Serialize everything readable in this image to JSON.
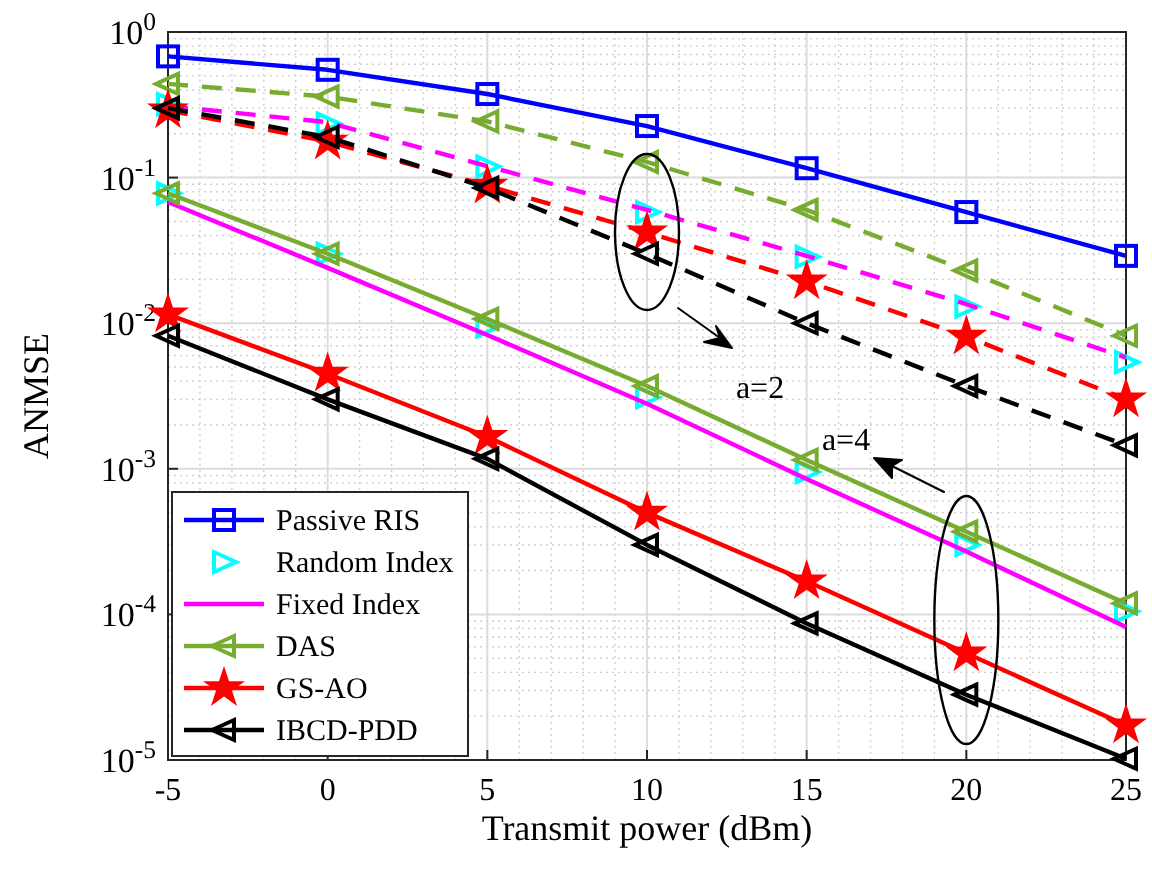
{
  "chart_data": {
    "type": "line",
    "xlabel": "Transmit power (dBm)",
    "ylabel": "ANMSE",
    "log": "y",
    "grid": true,
    "legend": "bottom left",
    "x": [
      -5,
      0,
      5,
      10,
      15,
      20,
      25
    ],
    "xlim": [
      -5,
      25
    ],
    "xticks": [
      -5,
      0,
      5,
      10,
      15,
      20,
      25
    ],
    "ylim": [
      1e-05,
      1
    ],
    "yticks": [
      {
        "value": 1e-05,
        "label": "10$^{-5}$"
      },
      {
        "value": 0.0001,
        "label": "10$^{-4}$"
      },
      {
        "value": 0.001,
        "label": "10$^{-3}$"
      },
      {
        "value": 0.01,
        "label": "10$^{-2}$"
      },
      {
        "value": 0.1,
        "label": "10$^{-1}$"
      },
      {
        "value": 1,
        "label": "10$^{0}$"
      }
    ],
    "series": [
      {
        "name": "Passive RIS",
        "color": "#0000ff",
        "marker": "square",
        "line_style": "solid",
        "values": [
          0.68,
          0.55,
          0.375,
          0.226,
          0.116,
          0.058,
          0.029
        ]
      },
      {
        "name": "Random Index",
        "type": "scatter",
        "color": "#00ffff",
        "marker": "triangle-right",
        "values": [
          0.078,
          0.03,
          0.0095,
          0.0031,
          0.00095,
          0.0003,
          0.000105
        ]
      },
      {
        "name": "Fixed Index",
        "color": "#ff00ff",
        "marker": "none",
        "line_style": "solid",
        "values": [
          0.068,
          0.024,
          0.0083,
          0.0028,
          0.00085,
          0.00027,
          8.2e-05
        ]
      },
      {
        "name": "DAS",
        "color": "#77ac30",
        "marker": "triangle-left",
        "line_style": "solid",
        "values": [
          0.078,
          0.03,
          0.0107,
          0.0037,
          0.00115,
          0.00037,
          0.000119
        ]
      },
      {
        "name": "GS-AO",
        "color": "#ff0000",
        "marker": "star",
        "line_style": "solid",
        "values": [
          0.0115,
          0.0045,
          0.00166,
          0.0005,
          0.000169,
          5.4e-05,
          1.73e-05
        ]
      },
      {
        "name": "IBCD-PDD",
        "color": "#000000",
        "marker": "triangle-left",
        "line_style": "solid",
        "values": [
          0.0082,
          0.003,
          0.00117,
          0.0003,
          8.67e-05,
          2.81e-05,
          1.02e-05
        ]
      },
      {
        "type": "scatter",
        "color": "#00ffff",
        "marker": "triangle-right",
        "values": [
          0.32,
          0.235,
          0.119,
          0.058,
          0.0286,
          0.013,
          0.0054
        ]
      },
      {
        "color": "#ff00ff",
        "marker": "none",
        "line_style": "dashed",
        "values": [
          0.31,
          0.24,
          0.12,
          0.06,
          0.029,
          0.0135,
          0.0058
        ]
      },
      {
        "color": "#77ac30",
        "marker": "triangle-left",
        "line_style": "dashed",
        "values": [
          0.44,
          0.36,
          0.243,
          0.128,
          0.06,
          0.023,
          0.0082
        ]
      },
      {
        "color": "#ff0000",
        "marker": "star",
        "line_style": "dashed",
        "values": [
          0.29,
          0.177,
          0.088,
          0.042,
          0.0194,
          0.0081,
          0.003
        ]
      },
      {
        "color": "#000000",
        "marker": "triangle-left",
        "line_style": "dashed",
        "values": [
          0.3,
          0.19,
          0.085,
          0.03,
          0.01,
          0.0037,
          0.00145
        ]
      }
    ],
    "annotations": [
      "a=2",
      "a=4"
    ]
  }
}
